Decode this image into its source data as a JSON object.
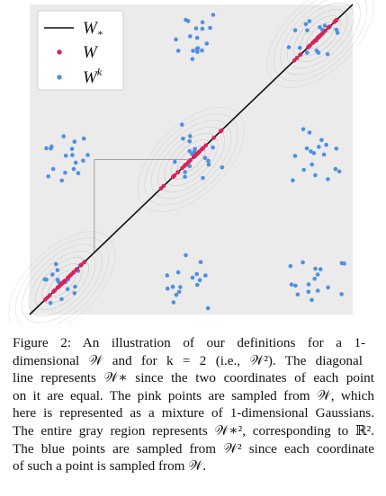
{
  "figure": {
    "legend": [
      {
        "key": "w_star",
        "symbol": "line",
        "text": "W",
        "sub": "*",
        "sup": ""
      },
      {
        "key": "w",
        "symbol": "pink-dot",
        "text": "W",
        "sub": "",
        "sup": ""
      },
      {
        "key": "w_k",
        "symbol": "blue-dot",
        "text": "W",
        "sub": "",
        "sup": "k"
      }
    ],
    "colors": {
      "background": "#ebebeb",
      "contour": "#c9c9c9",
      "diagonal": "#111111",
      "pink_points": "#d6245a",
      "blue_points": "#4f8fe0",
      "guide_lines": "#8c8c8c"
    },
    "gaussian_centers": [
      0.1,
      0.5,
      0.9
    ]
  },
  "caption": {
    "lines": [
      "Figure 2:  An illustration of our definitions for a 1-",
      "dimensional 𝒲 and for k  =  2 (i.e., 𝒲²). The diagonal",
      "line represents 𝒲∗ since the two coordinates of each point",
      "on it are equal. The pink points are sampled from 𝒲, which",
      "here is represented as a mixture of 1-dimensional Gaussians.",
      "The entire gray region represents 𝒲∗², corresponding to ℝ².",
      "The blue points are sampled from 𝒲² since each coordinate",
      "of such a point is sampled from 𝒲."
    ]
  }
}
